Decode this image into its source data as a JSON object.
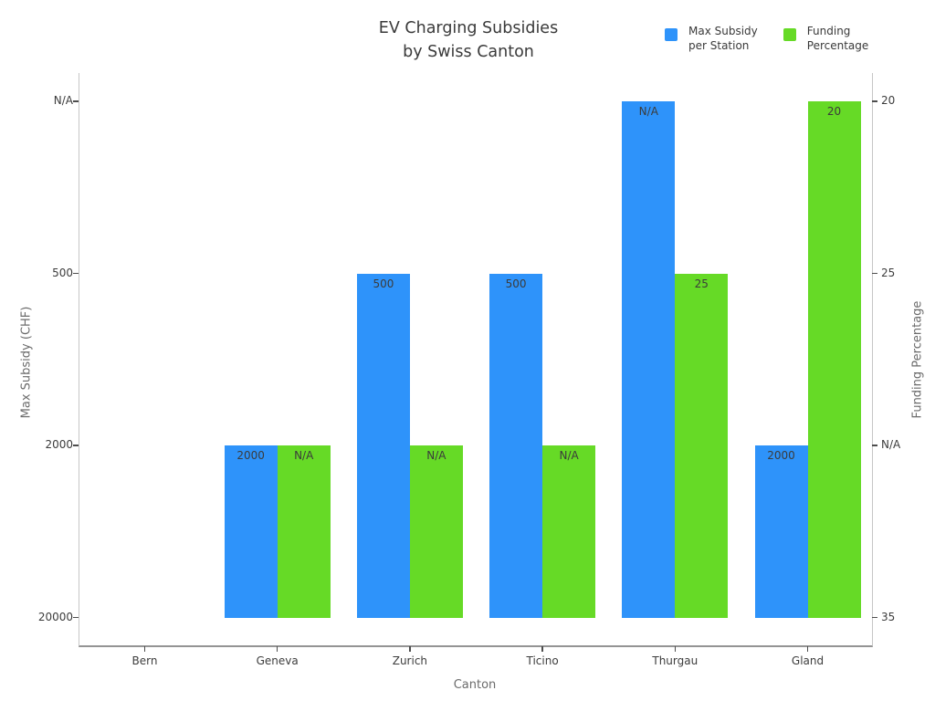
{
  "chart_data": {
    "type": "bar",
    "title_lines": [
      "EV Charging Subsidies",
      "by Swiss Canton"
    ],
    "categories": [
      "Bern",
      "Geneva",
      "Zurich",
      "Ticino",
      "Thurgau",
      "Gland"
    ],
    "series": [
      {
        "name": "Max Subsidy per Station",
        "name_lines": [
          "Max Subsidy",
          "per Station"
        ],
        "color": "#2E93fA",
        "axis": "left",
        "values": [
          null,
          "2000",
          "500",
          "500",
          "N/A",
          "2000"
        ]
      },
      {
        "name": "Funding Percentage",
        "name_lines": [
          "Funding",
          "Percentage"
        ],
        "color": "#66DA26",
        "axis": "right",
        "values": [
          null,
          "N/A",
          "N/A",
          "N/A",
          "25",
          "20"
        ]
      }
    ],
    "left_axis": {
      "label": "Max Subsidy (CHF)",
      "ticks": [
        "N/A",
        "500",
        "2000",
        "20000"
      ]
    },
    "right_axis": {
      "label": "Funding Percentage",
      "ticks": [
        "20",
        "25",
        "N/A",
        "35"
      ]
    },
    "x_axis": {
      "label": "Canton"
    },
    "grid": false,
    "legend_position": "top-right",
    "bar_value_labels": true
  }
}
